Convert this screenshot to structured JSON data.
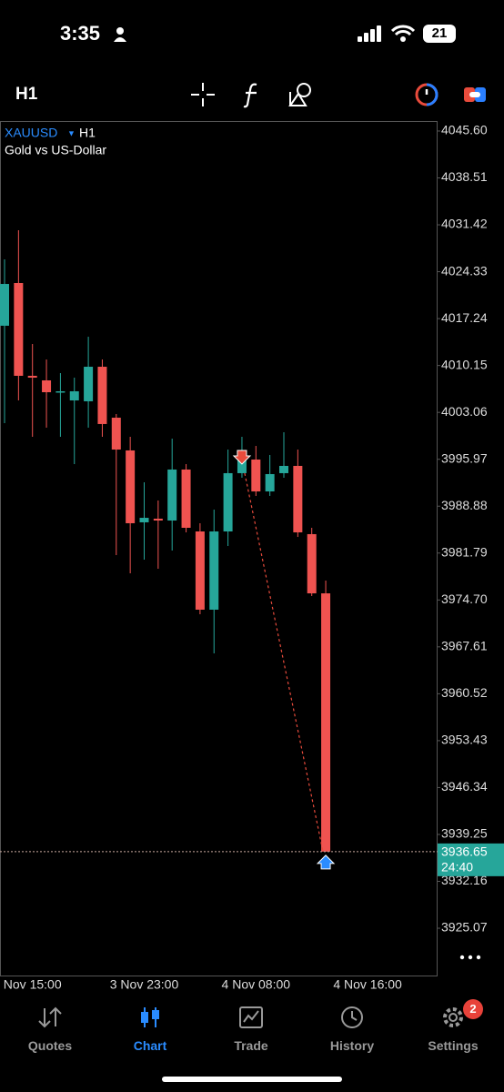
{
  "status_bar": {
    "time": "3:35",
    "battery": "21"
  },
  "toolbar": {
    "timeframe": "H1"
  },
  "tabs": [
    {
      "label": "Quotes"
    },
    {
      "label": "Chart"
    },
    {
      "label": "Trade"
    },
    {
      "label": "History"
    },
    {
      "label": "Settings",
      "badge": "2"
    }
  ],
  "chart_data": {
    "type": "candlestick",
    "title": "XAUUSD",
    "timeframe": "H1",
    "subtitle": "Gold vs US-Dollar",
    "categories": [
      null,
      null,
      "Nov 15:00",
      null,
      null,
      null,
      null,
      null,
      null,
      null,
      "3 Nov 23:00",
      null,
      null,
      null,
      null,
      null,
      null,
      null,
      "4 Nov 08:00",
      null,
      null,
      null,
      null,
      null,
      null,
      null,
      "4 Nov 16:00",
      null
    ],
    "open": [
      4016.16,
      4022.62,
      4008.59,
      4007.9,
      4006.11,
      4004.87,
      4004.74,
      4009.96,
      4002.26,
      3997.31,
      3986.44,
      3986.99,
      3986.71,
      3994.42,
      3985.06,
      3973.23,
      3985.06,
      3993.87,
      3995.93,
      3991.11,
      3993.87,
      3994.97,
      3984.65,
      3975.7,
      null,
      null,
      null,
      null
    ],
    "high": [
      4026.2,
      4030.6,
      4013.4,
      4011.06,
      4009.0,
      4008.31,
      4014.5,
      4011.06,
      4002.81,
      3999.37,
      3992.49,
      3989.74,
      3999.09,
      3995.24,
      3986.3,
      3988.36,
      3997.44,
      3999.37,
      3997.99,
      3996.62,
      4000.06,
      3997.44,
      3985.61,
      3977.63,
      null,
      null,
      null,
      null
    ],
    "low": [
      4001.43,
      4004.87,
      3999.37,
      4000.75,
      3999.37,
      3995.24,
      4000.75,
      3999.37,
      3981.48,
      3978.73,
      3980.79,
      3979.42,
      3982.17,
      3984.92,
      3972.54,
      3966.62,
      3982.86,
      3993.18,
      3990.43,
      3990.43,
      3993.18,
      3984.23,
      3975.29,
      3936.65,
      null,
      null,
      null,
      null
    ],
    "close": [
      4022.48,
      4008.59,
      4008.31,
      4006.11,
      4006.25,
      4006.25,
      4009.96,
      4001.3,
      3997.44,
      3986.3,
      3987.12,
      3986.71,
      3994.42,
      3985.61,
      3973.23,
      3985.06,
      3993.87,
      3995.93,
      3991.11,
      3993.73,
      3994.97,
      3984.92,
      3975.7,
      3936.65,
      null,
      null,
      null,
      null
    ],
    "up_color": "#26a69a",
    "down_color": "#ef5350",
    "ylim": [
      3917.92,
      4047.11
    ],
    "yticks": [
      {
        "value": 4045.6,
        "label": "4045.60"
      },
      4038.51,
      4031.42,
      4024.33,
      4017.24,
      4010.15,
      4003.06,
      3995.97,
      3988.88,
      3981.79,
      {
        "value": 3974.7,
        "label": "3974.70"
      },
      3967.61,
      3960.52,
      3953.43,
      3946.34,
      3939.25,
      3932.16,
      3925.07
    ],
    "current_price": 3936.65,
    "countdown": "24:40",
    "trade": {
      "open_price": 3993.87,
      "close_price": 3936.65
    }
  }
}
